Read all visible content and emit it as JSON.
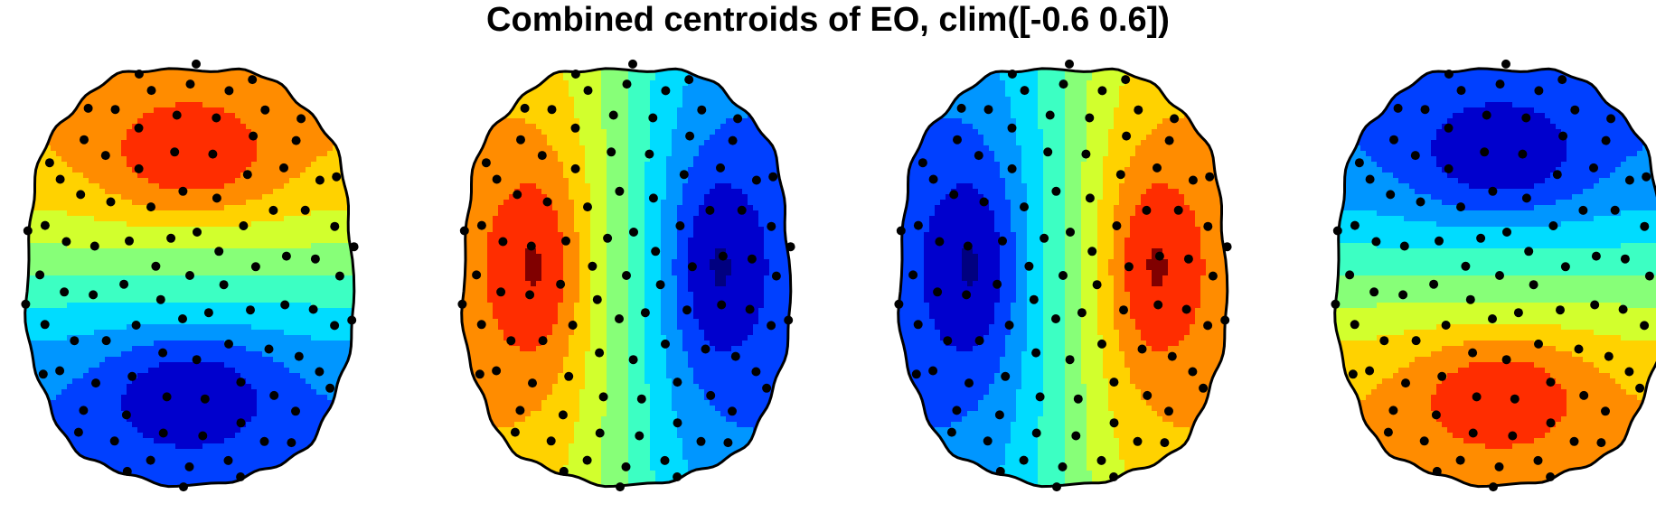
{
  "title": "Combined centroids of EO, clim([-0.6 0.6])",
  "colormap": [
    "#000080",
    "#0000CD",
    "#0040FF",
    "#0096FF",
    "#00DCFF",
    "#3CFFC3",
    "#87FF78",
    "#D2FF2D",
    "#FFD200",
    "#FF8C00",
    "#FF2D00",
    "#800000"
  ],
  "clim": [
    -0.6,
    0.6
  ],
  "maps": [
    {
      "pattern": "front-positive"
    },
    {
      "pattern": "left-positive"
    },
    {
      "pattern": "right-positive"
    },
    {
      "pattern": "back-positive"
    }
  ]
}
